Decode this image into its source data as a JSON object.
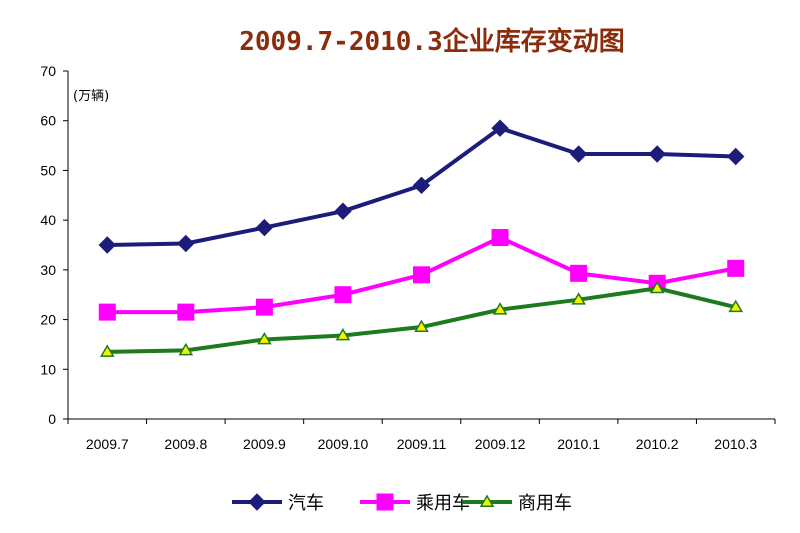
{
  "chart_data": {
    "type": "line",
    "title": "2009.7-2010.3企业库存变动图",
    "ylabel": "(万辆)",
    "xlabel": "",
    "categories": [
      "2009.7",
      "2009.8",
      "2009.9",
      "2009.10",
      "2009.11",
      "2009.12",
      "2010.1",
      "2010.2",
      "2010.3"
    ],
    "ylim": [
      0,
      70
    ],
    "yticks": [
      "0",
      "10",
      "20",
      "30",
      "40",
      "50",
      "60",
      "70"
    ],
    "grid": false,
    "legend_position": "bottom",
    "series": [
      {
        "name": "汽车",
        "color": "#1c1c7a",
        "marker": "diamond",
        "values": [
          35,
          35.3,
          38.5,
          41.8,
          47,
          58.5,
          53.3,
          53.3,
          52.8
        ]
      },
      {
        "name": "乘用车",
        "color": "#ff00ff",
        "marker": "square",
        "values": [
          21.5,
          21.5,
          22.5,
          25,
          29,
          36.5,
          29.3,
          27.3,
          30.3
        ]
      },
      {
        "name": "商用车",
        "color": "#1e7a1e",
        "marker": "triangle",
        "values": [
          13.5,
          13.8,
          16,
          16.8,
          18.5,
          22,
          24,
          26.3,
          22.5
        ]
      }
    ],
    "title_color": "#8b2c0c"
  }
}
